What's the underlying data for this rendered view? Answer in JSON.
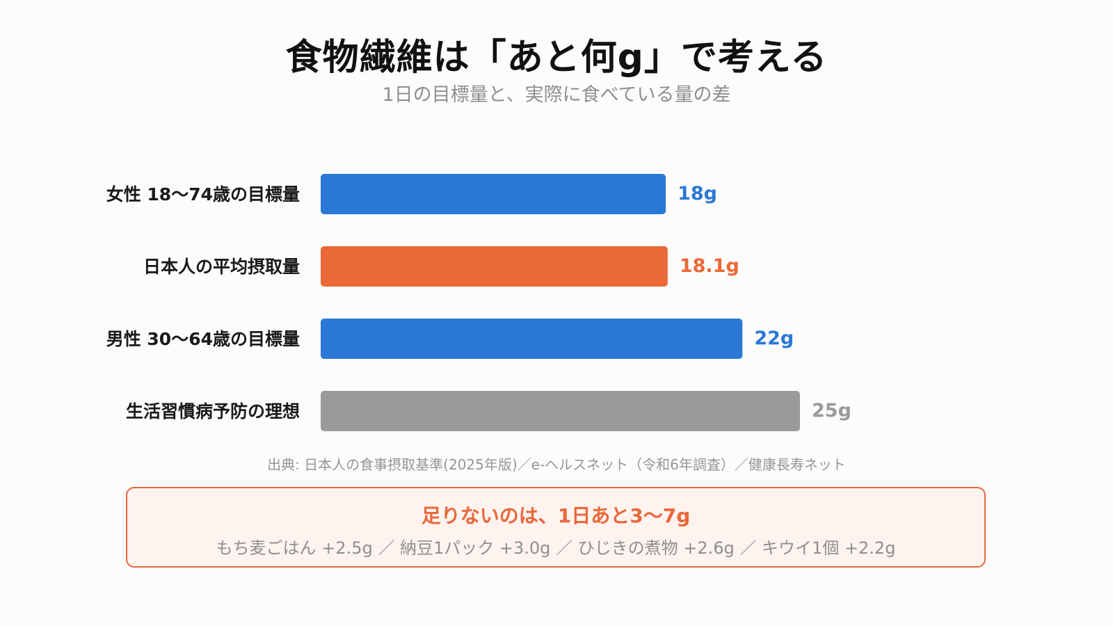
{
  "header": {
    "title": "食物繊維は「あと何g」で考える",
    "subtitle": "1日の目標量と、実際に食べている量の差"
  },
  "chart_data": {
    "type": "bar",
    "orientation": "horizontal",
    "categories": [
      "女性 18〜74歳の目標量",
      "日本人の平均摂取量",
      "男性 30〜64歳の目標量",
      "生活習慣病予防の理想"
    ],
    "values": [
      18,
      18.1,
      22,
      25
    ],
    "value_labels": [
      "18g",
      "18.1g",
      "22g",
      "25g"
    ],
    "unit": "g",
    "colors": [
      "#2a78d6",
      "#eb6837",
      "#2a78d6",
      "#989b98"
    ],
    "xlim": [
      0,
      25
    ],
    "grid": false,
    "legend": "none"
  },
  "source": "出典: 日本人の食事摂取基準(2025年版)／e-ヘルスネット（令和6年調査）／健康長寿ネット",
  "callout": {
    "heading": "足りないのは、1日あと3〜7g",
    "body": "もち麦ごはん +2.5g ／ 納豆1パック +3.0g ／ ひじきの煮物 +2.6g ／ キウイ1個 +2.2g",
    "accent": "#e9683a"
  }
}
